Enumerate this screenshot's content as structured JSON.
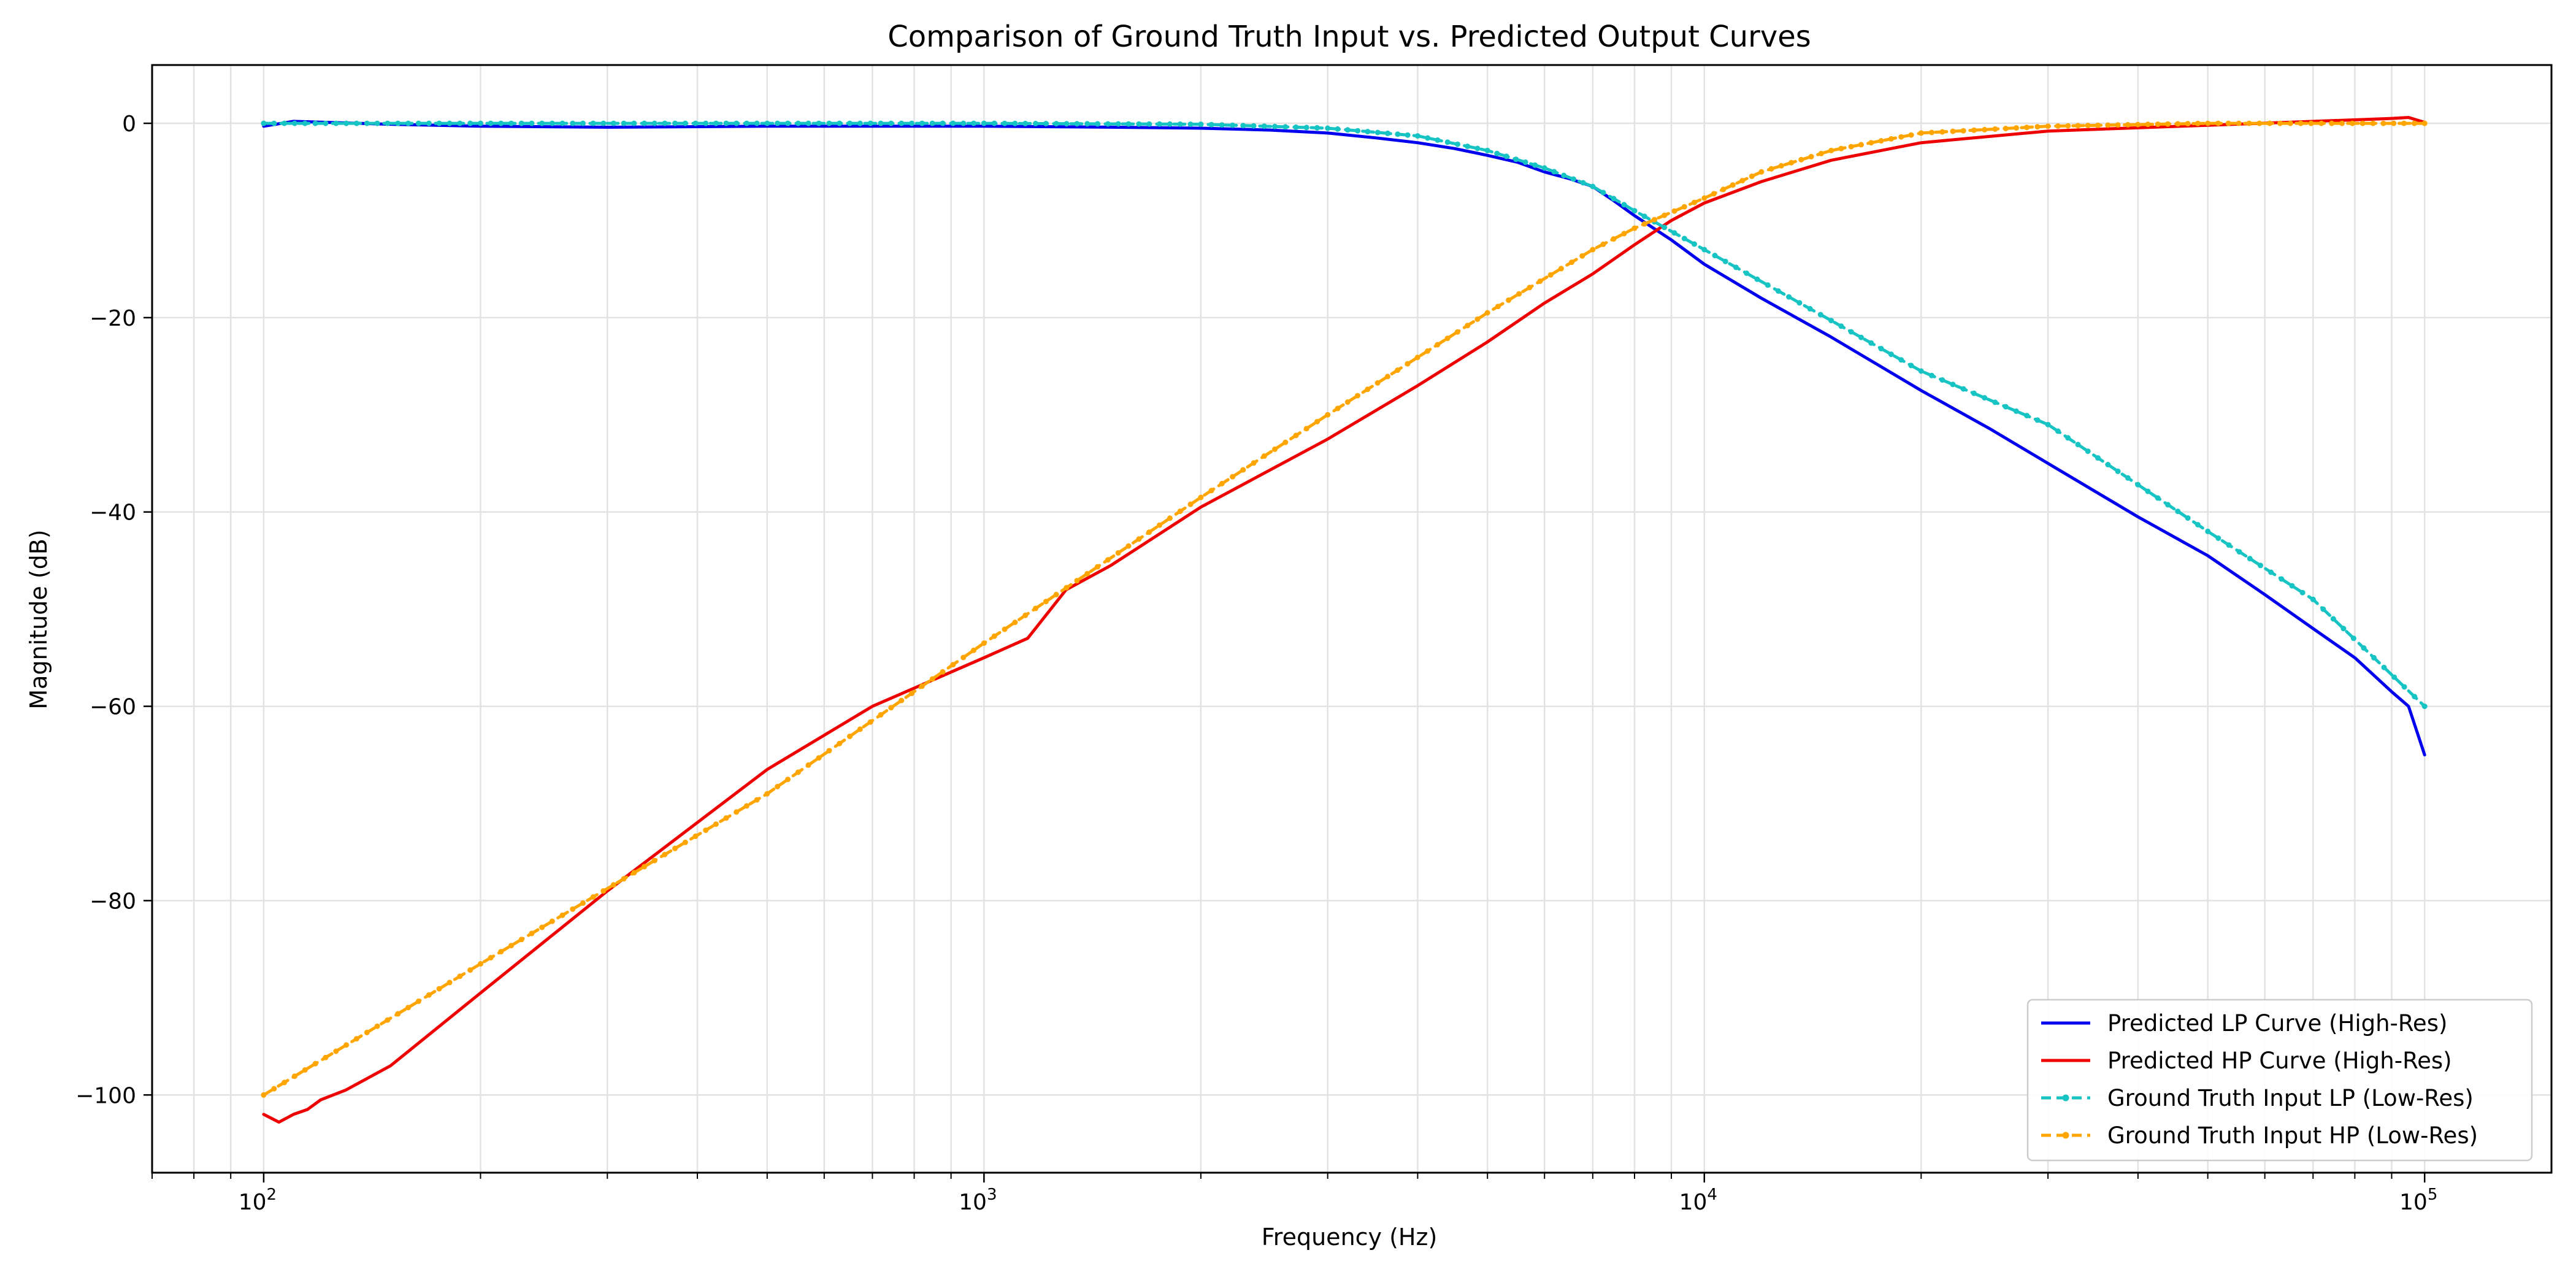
{
  "chart_data": {
    "type": "line",
    "title": "Comparison of Ground Truth Input vs. Predicted Output Curves",
    "xlabel": "Frequency (Hz)",
    "ylabel": "Magnitude (dB)",
    "xscale": "log",
    "xlim": [
      70,
      150000
    ],
    "ylim": [
      -108,
      6
    ],
    "grid": true,
    "legend_position": "lower-right",
    "x_ticks": [
      {
        "value": 100,
        "base": "10",
        "exp": "2"
      },
      {
        "value": 1000,
        "base": "10",
        "exp": "3"
      },
      {
        "value": 10000,
        "base": "10",
        "exp": "4"
      },
      {
        "value": 100000,
        "base": "10",
        "exp": "5"
      }
    ],
    "y_ticks": [
      {
        "value": 0,
        "label": "0"
      },
      {
        "value": -20,
        "label": "−20"
      },
      {
        "value": -40,
        "label": "−40"
      },
      {
        "value": -60,
        "label": "−60"
      },
      {
        "value": -80,
        "label": "−80"
      },
      {
        "value": -100,
        "label": "−100"
      }
    ],
    "series": [
      {
        "name": "Predicted LP Curve (High-Res)",
        "color": "#0000ee",
        "style": "solid",
        "x": [
          100,
          110,
          150,
          200,
          300,
          500,
          800,
          1000,
          1500,
          2000,
          2500,
          3000,
          3500,
          4000,
          4500,
          5000,
          5500,
          6000,
          6500,
          7000,
          7500,
          8000,
          9000,
          10000,
          12000,
          15000,
          20000,
          25000,
          30000,
          40000,
          50000,
          60000,
          70000,
          80000,
          90000,
          95000,
          100000
        ],
        "y": [
          -0.3,
          0.2,
          -0.1,
          -0.3,
          -0.4,
          -0.3,
          -0.3,
          -0.3,
          -0.4,
          -0.5,
          -0.7,
          -1.0,
          -1.5,
          -2.0,
          -2.6,
          -3.3,
          -4.0,
          -5.0,
          -5.7,
          -6.5,
          -8.0,
          -9.5,
          -12.0,
          -14.5,
          -18.0,
          -22.0,
          -27.5,
          -31.5,
          -35.0,
          -40.5,
          -44.5,
          -48.5,
          -52.0,
          -55.0,
          -58.5,
          -60.0,
          -65.0
        ]
      },
      {
        "name": "Predicted HP Curve (High-Res)",
        "color": "#ee0000",
        "style": "solid",
        "x": [
          100,
          105,
          110,
          115,
          120,
          130,
          150,
          200,
          300,
          500,
          700,
          1000,
          1150,
          1300,
          1500,
          2000,
          3000,
          4000,
          5000,
          6000,
          7000,
          8000,
          9000,
          10000,
          12000,
          15000,
          20000,
          30000,
          50000,
          70000,
          90000,
          95000,
          100000
        ],
        "y": [
          -102.0,
          -102.8,
          -102.0,
          -101.5,
          -100.5,
          -99.5,
          -97.0,
          -89.5,
          -79.0,
          -66.5,
          -60.0,
          -55.0,
          -53.0,
          -48.0,
          -45.5,
          -39.5,
          -32.5,
          -27.0,
          -22.5,
          -18.5,
          -15.5,
          -12.5,
          -10.0,
          -8.2,
          -6.0,
          -3.8,
          -2.0,
          -0.8,
          -0.2,
          0.2,
          0.5,
          0.6,
          0.1
        ]
      },
      {
        "name": "Ground Truth Input LP (Low-Res)",
        "color": "#17c3c3",
        "style": "dashed-dots",
        "x": [
          100,
          200,
          500,
          1000,
          2000,
          3000,
          4000,
          5000,
          6000,
          7000,
          8000,
          10000,
          15000,
          20000,
          30000,
          50000,
          70000,
          100000
        ],
        "y": [
          0.0,
          0.0,
          0.0,
          0.0,
          -0.1,
          -0.5,
          -1.3,
          -2.8,
          -4.6,
          -6.5,
          -9.0,
          -13.0,
          -20.3,
          -25.5,
          -31.0,
          -42.0,
          -49.0,
          -60.0
        ]
      },
      {
        "name": "Ground Truth Input HP (Low-Res)",
        "color": "#ffa500",
        "style": "dashed-dots",
        "x": [
          100,
          200,
          500,
          1000,
          2000,
          3000,
          5000,
          7000,
          8000,
          10000,
          12000,
          15000,
          20000,
          30000,
          50000,
          100000
        ],
        "y": [
          -100.0,
          -86.5,
          -69.0,
          -53.5,
          -38.5,
          -30.0,
          -19.5,
          -13.0,
          -10.8,
          -7.7,
          -5.0,
          -2.8,
          -1.0,
          -0.3,
          0.0,
          0.0
        ]
      }
    ]
  }
}
